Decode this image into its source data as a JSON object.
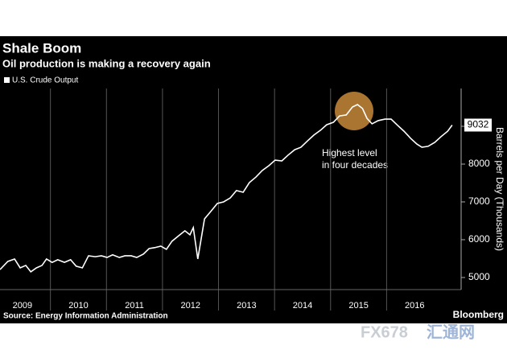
{
  "chart_data": {
    "type": "line",
    "title": "Shale Boom",
    "subtitle": "Oil production is making a recovery again",
    "y_axis_label": "Barrels per Day (Thousands)",
    "source": "Source: Energy Information Administration",
    "brand": "Bloomberg",
    "annotation": [
      "Highest level",
      "in four decades"
    ],
    "watermark": [
      "FX678",
      "汇通网"
    ],
    "xlim": [
      2009.1,
      2017.33
    ],
    "xticks": [
      {
        "value": 2009,
        "label": "2009"
      },
      {
        "value": 2010,
        "label": "2010"
      },
      {
        "value": 2011,
        "label": "2011"
      },
      {
        "value": 2012,
        "label": "2012"
      },
      {
        "value": 2013,
        "label": "2013"
      },
      {
        "value": 2014,
        "label": "2014"
      },
      {
        "value": 2015,
        "label": "2015"
      },
      {
        "value": 2016,
        "label": "2016"
      }
    ],
    "ylim": [
      4680,
      10000
    ],
    "yticks": [
      5000,
      6000,
      7000,
      8000,
      9000
    ],
    "x": [
      2009.1,
      2009.24,
      2009.36,
      2009.46,
      2009.56,
      2009.65,
      2009.75,
      2009.85,
      2009.93,
      2010.03,
      2010.13,
      2010.25,
      2010.36,
      2010.46,
      2010.57,
      2010.68,
      2010.8,
      2010.91,
      2011.01,
      2011.11,
      2011.23,
      2011.33,
      2011.44,
      2011.54,
      2011.66,
      2011.76,
      2011.86,
      2011.97,
      2012.07,
      2012.17,
      2012.29,
      2012.4,
      2012.49,
      2012.55,
      2012.63,
      2012.75,
      2012.86,
      2012.98,
      2013.09,
      2013.21,
      2013.32,
      2013.44,
      2013.55,
      2013.67,
      2013.78,
      2013.9,
      2014.01,
      2014.13,
      2014.24,
      2014.36,
      2014.47,
      2014.59,
      2014.7,
      2014.82,
      2014.93,
      2015.05,
      2015.16,
      2015.28,
      2015.39,
      2015.48,
      2015.57,
      2015.65,
      2015.74,
      2015.85,
      2015.97,
      2016.08,
      2016.2,
      2016.31,
      2016.43,
      2016.54,
      2016.63,
      2016.74,
      2016.86,
      2016.97,
      2017.09,
      2017.17
    ],
    "series": [
      {
        "name": "U.S. Crude Output",
        "color": "#ffffff",
        "values": [
          5210,
          5425,
          5490,
          5255,
          5320,
          5150,
          5255,
          5320,
          5490,
          5400,
          5470,
          5400,
          5470,
          5300,
          5255,
          5575,
          5550,
          5575,
          5530,
          5600,
          5530,
          5575,
          5575,
          5530,
          5620,
          5765,
          5790,
          5830,
          5745,
          5960,
          6105,
          6235,
          6130,
          6320,
          5490,
          6550,
          6745,
          6960,
          7000,
          7105,
          7300,
          7255,
          7510,
          7660,
          7830,
          7960,
          8105,
          8085,
          8235,
          8380,
          8445,
          8615,
          8765,
          8895,
          9040,
          9105,
          9275,
          9300,
          9510,
          9575,
          9470,
          9210,
          9065,
          9150,
          9190,
          9190,
          9020,
          8870,
          8680,
          8530,
          8445,
          8470,
          8575,
          8725,
          8870,
          9032
        ]
      }
    ]
  }
}
